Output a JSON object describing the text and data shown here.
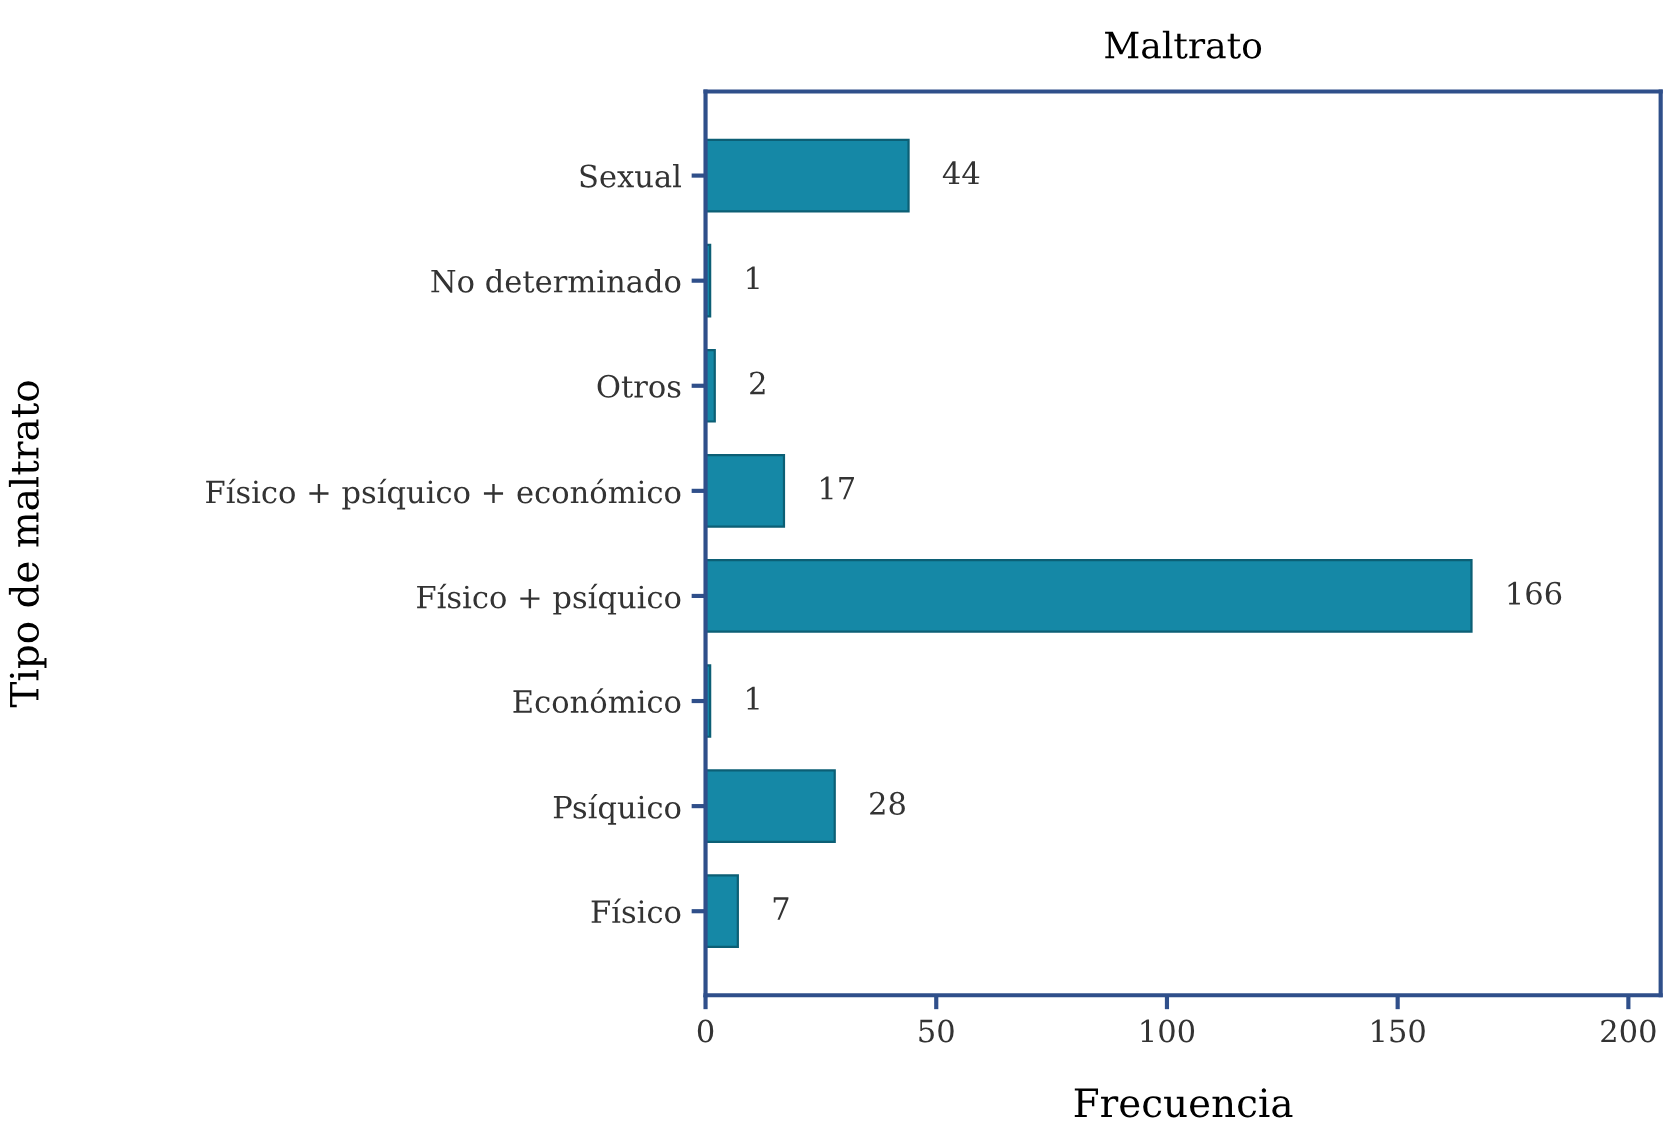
{
  "chart_data": {
    "type": "bar",
    "orientation": "horizontal",
    "title": "Maltrato",
    "xlabel": "Frecuencia",
    "ylabel": "Tipo de maltrato",
    "categories": [
      "Sexual",
      "No determinado",
      "Otros",
      "Físico + psíquico + económico",
      "Físico + psíquico",
      "Económico",
      "Psíquico",
      "Físico"
    ],
    "values": [
      44,
      1,
      2,
      17,
      166,
      1,
      28,
      7
    ],
    "color": "#1588a6",
    "data_labels": true,
    "xlim": [
      0,
      207
    ],
    "xticks": [
      0,
      50,
      100,
      150,
      200
    ],
    "grid": false,
    "legend": false
  }
}
